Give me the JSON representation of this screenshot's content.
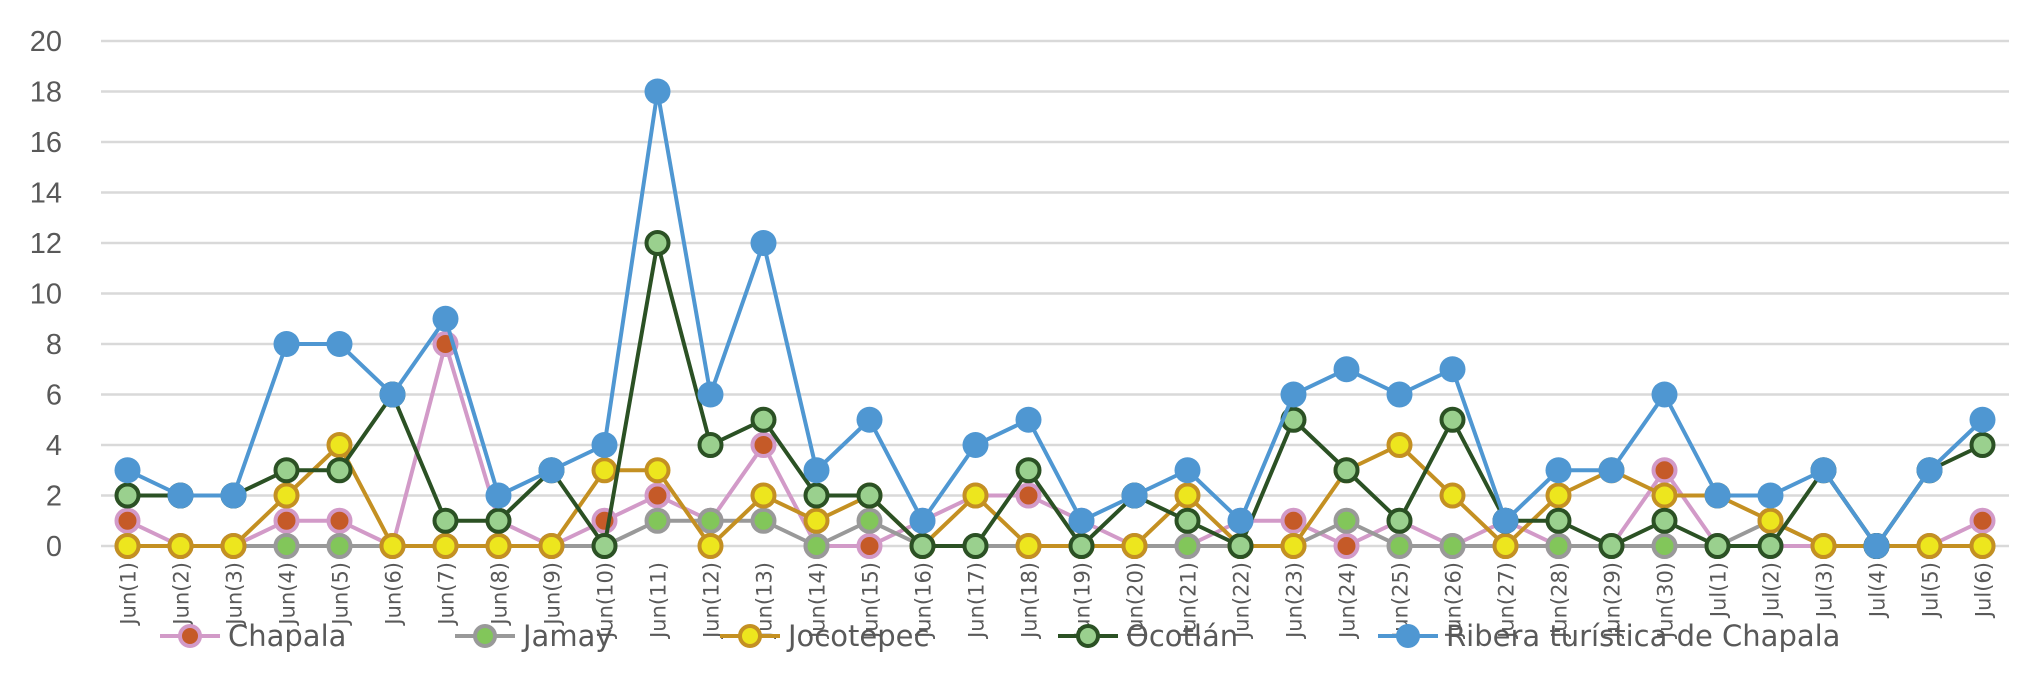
{
  "chart_data": {
    "type": "line",
    "title": "",
    "xlabel": "",
    "ylabel": "",
    "ylim": [
      0,
      20
    ],
    "yticks": [
      "0",
      "2",
      "4",
      "6",
      "8",
      "10",
      "12",
      "14",
      "16",
      "18",
      "20"
    ],
    "grid": true,
    "legend_position": "bottom",
    "categories": [
      "Jun(1)",
      "Jun(2)",
      "Jun(3)",
      "Jun(4)",
      "Jun(5)",
      "Jun(6)",
      "Jun(7)",
      "Jun(8)",
      "Jun(9)",
      "Jun(10)",
      "Jun(11)",
      "Jun(12)",
      "Jun(13)",
      "Jun(14)",
      "Jun(15)",
      "Jun(16)",
      "Jun(17)",
      "Jun(18)",
      "Jun(19)",
      "Jun(20)",
      "Jun(21)",
      "Jun(22)",
      "Jun(23)",
      "Jun(24)",
      "Jun(25)",
      "Jun(26)",
      "Jun(27)",
      "Jun(28)",
      "Jun(29)",
      "Jun(30)",
      "Jul(1)",
      "Jul(2)",
      "Jul(3)",
      "Jul(4)",
      "Jul(5)",
      "Jul(6)"
    ],
    "series": [
      {
        "name": "Chapala",
        "line": "#d29ac8",
        "fill": "#c55a28",
        "stroke": "#d29ac8",
        "values": [
          1,
          0,
          0,
          1,
          1,
          0,
          8,
          1,
          0,
          1,
          2,
          1,
          4,
          0,
          0,
          1,
          2,
          2,
          1,
          0,
          0,
          1,
          1,
          0,
          1,
          0,
          1,
          0,
          0,
          3,
          0,
          0,
          0,
          0,
          0,
          1
        ]
      },
      {
        "name": "Jamay",
        "line": "#999999",
        "fill": "#82c65a",
        "stroke": "#999999",
        "values": [
          0,
          0,
          0,
          0,
          0,
          0,
          0,
          0,
          0,
          0,
          1,
          1,
          1,
          0,
          1,
          0,
          0,
          0,
          0,
          0,
          0,
          0,
          0,
          1,
          0,
          0,
          0,
          0,
          0,
          0,
          0,
          1,
          0,
          0,
          0,
          0
        ]
      },
      {
        "name": "Jocotepec",
        "line": "#c49022",
        "fill": "#ede61e",
        "stroke": "#c49022",
        "values": [
          0,
          0,
          0,
          2,
          4,
          0,
          0,
          0,
          0,
          3,
          3,
          0,
          2,
          1,
          2,
          0,
          2,
          0,
          0,
          0,
          2,
          0,
          0,
          3,
          4,
          2,
          0,
          2,
          3,
          2,
          2,
          1,
          0,
          0,
          0,
          0
        ]
      },
      {
        "name": "Ocotlán",
        "line": "#2b5124",
        "fill": "#9ad08e",
        "stroke": "#2b5124",
        "values": [
          2,
          2,
          2,
          3,
          3,
          6,
          1,
          1,
          3,
          0,
          12,
          4,
          5,
          2,
          2,
          0,
          0,
          3,
          0,
          2,
          1,
          0,
          5,
          3,
          1,
          5,
          1,
          1,
          0,
          1,
          0,
          0,
          3,
          0,
          3,
          4
        ]
      },
      {
        "name": "Ribera turística de Chapala",
        "line": "#4f97d2",
        "fill": "#4f97d2",
        "stroke": "#4f97d2",
        "values": [
          3,
          2,
          2,
          8,
          8,
          6,
          9,
          2,
          3,
          4,
          18,
          6,
          12,
          3,
          5,
          1,
          4,
          5,
          1,
          2,
          3,
          1,
          6,
          7,
          6,
          7,
          1,
          3,
          3,
          6,
          2,
          2,
          3,
          0,
          3,
          5
        ]
      }
    ]
  }
}
